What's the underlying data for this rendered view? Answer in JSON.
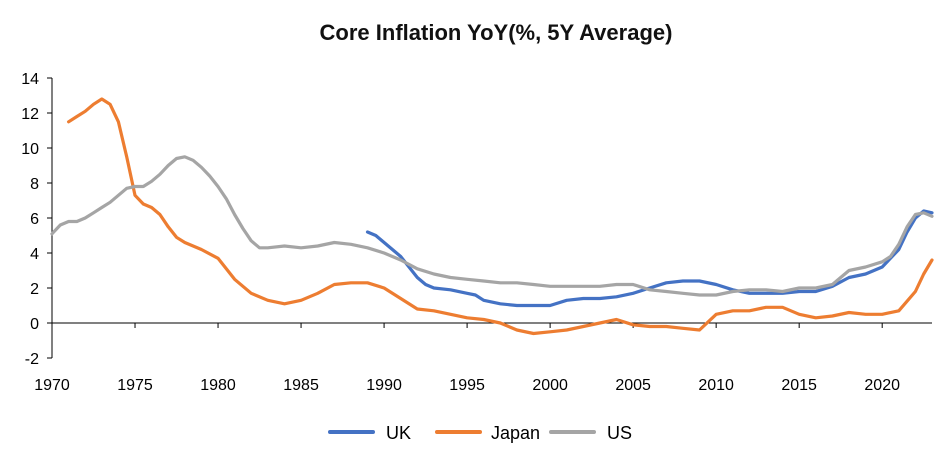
{
  "chart_data": {
    "type": "line",
    "title": "Core Inflation YoY(%, 5Y Average)",
    "xlabel": "",
    "ylabel": "",
    "xlim": [
      1970,
      2023
    ],
    "ylim": [
      -2,
      14
    ],
    "xticks": [
      1970,
      1975,
      1980,
      1985,
      1990,
      1995,
      2000,
      2005,
      2010,
      2015,
      2020
    ],
    "yticks": [
      -2,
      0,
      2,
      4,
      6,
      8,
      10,
      12,
      14
    ],
    "grid": false,
    "legend_position": "bottom-center",
    "series": [
      {
        "name": "UK",
        "color": "#4472C4",
        "x": [
          1989,
          1989.5,
          1990,
          1990.5,
          1991,
          1991.5,
          1992,
          1992.5,
          1993,
          1994,
          1995,
          1995.5,
          1996,
          1997,
          1998,
          1999,
          2000,
          2001,
          2002,
          2003,
          2004,
          2005,
          2006,
          2007,
          2008,
          2009,
          2010,
          2011,
          2012,
          2013,
          2014,
          2015,
          2016,
          2017,
          2018,
          2019,
          2020,
          2021,
          2021.5,
          2022,
          2022.5,
          2023
        ],
        "values": [
          5.2,
          5.0,
          4.6,
          4.2,
          3.8,
          3.2,
          2.6,
          2.2,
          2.0,
          1.9,
          1.7,
          1.6,
          1.3,
          1.1,
          1.0,
          1.0,
          1.0,
          1.3,
          1.4,
          1.4,
          1.5,
          1.7,
          2.0,
          2.3,
          2.4,
          2.4,
          2.2,
          1.9,
          1.7,
          1.7,
          1.7,
          1.8,
          1.8,
          2.1,
          2.6,
          2.8,
          3.2,
          4.2,
          5.2,
          6.0,
          6.4,
          6.3
        ]
      },
      {
        "name": "Japan",
        "color": "#ED7D31",
        "x": [
          1971,
          1971.5,
          1972,
          1972.5,
          1973,
          1973.5,
          1974,
          1974.5,
          1975,
          1975.5,
          1976,
          1976.5,
          1977,
          1977.5,
          1978,
          1979,
          1980,
          1981,
          1982,
          1983,
          1984,
          1985,
          1986,
          1987,
          1988,
          1989,
          1990,
          1991,
          1992,
          1993,
          1994,
          1995,
          1996,
          1997,
          1998,
          1999,
          2000,
          2001,
          2002,
          2003,
          2004,
          2005,
          2006,
          2007,
          2008,
          2009,
          2010,
          2011,
          2012,
          2013,
          2014,
          2015,
          2016,
          2017,
          2018,
          2019,
          2020,
          2021,
          2022,
          2022.5,
          2023
        ],
        "values": [
          11.5,
          11.8,
          12.1,
          12.5,
          12.8,
          12.5,
          11.5,
          9.5,
          7.3,
          6.8,
          6.6,
          6.2,
          5.5,
          4.9,
          4.6,
          4.2,
          3.7,
          2.5,
          1.7,
          1.3,
          1.1,
          1.3,
          1.7,
          2.2,
          2.3,
          2.3,
          2.0,
          1.4,
          0.8,
          0.7,
          0.5,
          0.3,
          0.2,
          0.0,
          -0.4,
          -0.6,
          -0.5,
          -0.4,
          -0.2,
          0.0,
          0.2,
          -0.1,
          -0.2,
          -0.2,
          -0.3,
          -0.4,
          0.5,
          0.7,
          0.7,
          0.9,
          0.9,
          0.5,
          0.3,
          0.4,
          0.6,
          0.5,
          0.5,
          0.7,
          1.8,
          2.8,
          3.6
        ]
      },
      {
        "name": "US",
        "color": "#A5A5A5",
        "x": [
          1970,
          1970.5,
          1971,
          1971.5,
          1972,
          1972.5,
          1973,
          1973.5,
          1974,
          1974.5,
          1975,
          1975.5,
          1976,
          1976.5,
          1977,
          1977.5,
          1978,
          1978.5,
          1979,
          1979.5,
          1980,
          1980.5,
          1981,
          1981.5,
          1982,
          1982.5,
          1983,
          1984,
          1985,
          1986,
          1987,
          1988,
          1989,
          1990,
          1991,
          1992,
          1993,
          1994,
          1995,
          1996,
          1997,
          1998,
          1999,
          2000,
          2001,
          2002,
          2003,
          2004,
          2005,
          2006,
          2007,
          2008,
          2009,
          2010,
          2011,
          2012,
          2013,
          2014,
          2015,
          2016,
          2017,
          2018,
          2019,
          2020,
          2020.5,
          2021,
          2021.5,
          2022,
          2022.5,
          2023
        ],
        "values": [
          5.1,
          5.6,
          5.8,
          5.8,
          6.0,
          6.3,
          6.6,
          6.9,
          7.3,
          7.7,
          7.8,
          7.8,
          8.1,
          8.5,
          9.0,
          9.4,
          9.5,
          9.3,
          8.9,
          8.4,
          7.8,
          7.1,
          6.2,
          5.4,
          4.7,
          4.3,
          4.3,
          4.4,
          4.3,
          4.4,
          4.6,
          4.5,
          4.3,
          4.0,
          3.6,
          3.1,
          2.8,
          2.6,
          2.5,
          2.4,
          2.3,
          2.3,
          2.2,
          2.1,
          2.1,
          2.1,
          2.1,
          2.2,
          2.2,
          1.9,
          1.8,
          1.7,
          1.6,
          1.6,
          1.8,
          1.9,
          1.9,
          1.8,
          2.0,
          2.0,
          2.2,
          3.0,
          3.2,
          3.5,
          3.8,
          4.5,
          5.5,
          6.2,
          6.3,
          6.1
        ]
      }
    ]
  }
}
